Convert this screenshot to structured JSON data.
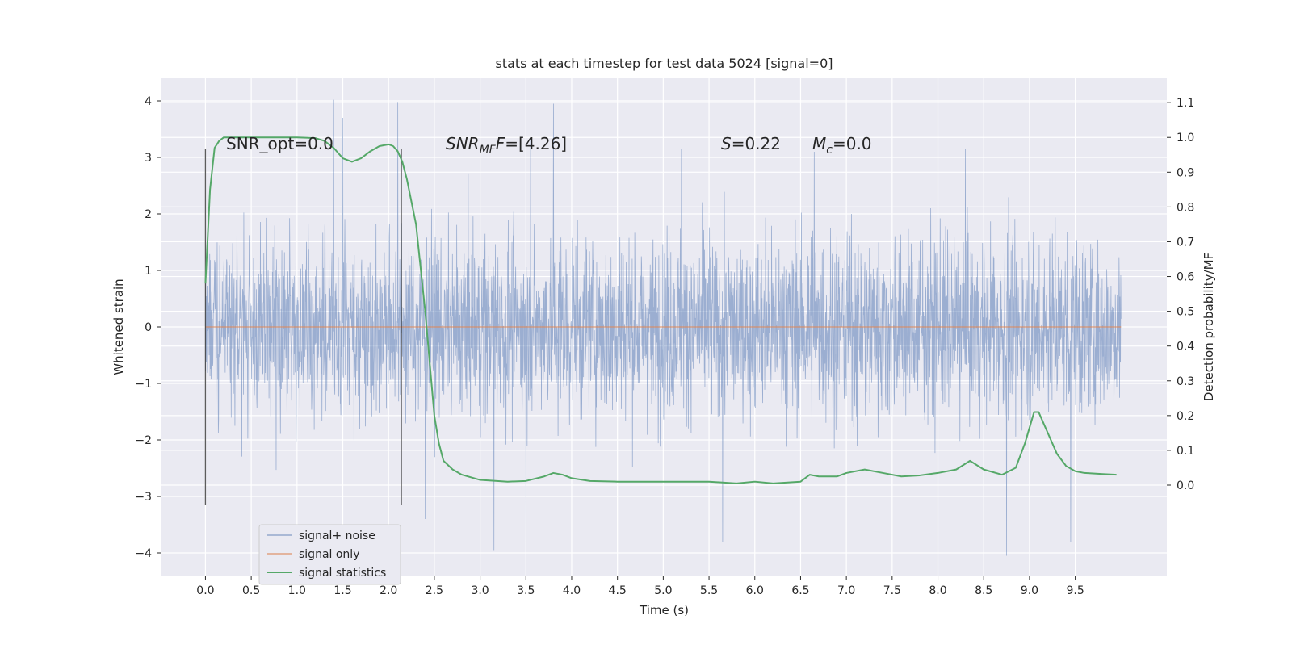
{
  "chart_data": {
    "type": "line",
    "title": "stats at each timestep for test data 5024 [signal=0]",
    "xlabel": "Time (s)",
    "ylabel": "Whitened strain",
    "y2label": "Detection probability/MF",
    "xlim": [
      -0.48,
      10.5
    ],
    "ylim": [
      -4.4,
      4.4
    ],
    "y2lim": [
      -0.26,
      1.17
    ],
    "x_ticks": [
      0.0,
      0.5,
      1.0,
      1.5,
      2.0,
      2.5,
      3.0,
      3.5,
      4.0,
      4.5,
      5.0,
      5.5,
      6.0,
      6.5,
      7.0,
      7.5,
      8.0,
      8.5,
      9.0,
      9.5
    ],
    "x_tick_labels": [
      "0.0",
      "0.5",
      "1.0",
      "1.5",
      "2.0",
      "2.5",
      "3.0",
      "3.5",
      "4.0",
      "4.5",
      "5.0",
      "5.5",
      "6.0",
      "6.5",
      "7.0",
      "7.5",
      "8.0",
      "8.5",
      "9.0",
      "9.5"
    ],
    "y_ticks": [
      4,
      3,
      2,
      1,
      0,
      -1,
      -2,
      -3,
      -4
    ],
    "y_tick_labels": [
      "4",
      "3",
      "2",
      "1",
      "0",
      "−1",
      "−2",
      "−3",
      "−4"
    ],
    "y2_ticks": [
      1.1,
      1.0,
      0.9,
      0.8,
      0.7,
      0.6,
      0.5,
      0.4,
      0.3,
      0.2,
      0.1,
      0.0
    ],
    "y2_tick_labels": [
      "1.1",
      "1.0",
      "0.9",
      "0.8",
      "0.7",
      "0.6",
      "0.5",
      "0.4",
      "0.3",
      "0.2",
      "0.1",
      "0.0"
    ],
    "grid": true,
    "legend_position": "bottom-left",
    "annotations": {
      "snr_opt": "SNR_opt=0.0",
      "snr_mf_main": "SNR",
      "snr_mf_sub": "MF",
      "snr_mf_rest": "=[4.26]",
      "s_main": "S",
      "s_rest": "=0.22",
      "mc_main": "M",
      "mc_sub": "c",
      "mc_rest": "=0.0"
    },
    "vlines": [
      {
        "x": 0.0,
        "y": [
          -3.15,
          3.15
        ]
      },
      {
        "x": 2.14,
        "y": [
          -3.15,
          3.15
        ]
      }
    ],
    "series": [
      {
        "name": "signal+ noise",
        "color": "#4c72b0",
        "axis": "left",
        "time_range": [
          0.0,
          10.0
        ],
        "envelope": {
          "typical_abs": 1.3,
          "max": 4.02,
          "min": -4.05
        },
        "notable_peaks": [
          {
            "x": 1.4,
            "y": 4.02
          },
          {
            "x": 2.1,
            "y": 3.98
          },
          {
            "x": 3.8,
            "y": 3.95
          },
          {
            "x": 1.5,
            "y": 3.7
          },
          {
            "x": 3.5,
            "y": -4.05
          },
          {
            "x": 8.75,
            "y": -4.05
          },
          {
            "x": 3.15,
            "y": -3.95
          },
          {
            "x": 5.65,
            "y": -3.8
          },
          {
            "x": 9.45,
            "y": -3.8
          },
          {
            "x": 2.4,
            "y": -3.4
          },
          {
            "x": 3.55,
            "y": 3.3
          },
          {
            "x": 5.2,
            "y": 3.15
          },
          {
            "x": 6.65,
            "y": 3.1
          },
          {
            "x": 8.3,
            "y": 3.15
          }
        ]
      },
      {
        "name": "signal only",
        "color": "#dd8452",
        "axis": "left",
        "x": [
          0.0,
          10.0
        ],
        "y": [
          0.0,
          0.0
        ]
      },
      {
        "name": "signal statistics",
        "color": "#55a868",
        "axis": "right",
        "x": [
          0.0,
          0.05,
          0.1,
          0.15,
          0.2,
          0.3,
          0.5,
          0.8,
          1.0,
          1.2,
          1.3,
          1.4,
          1.5,
          1.6,
          1.7,
          1.8,
          1.9,
          2.0,
          2.05,
          2.1,
          2.15,
          2.2,
          2.3,
          2.4,
          2.45,
          2.5,
          2.55,
          2.6,
          2.7,
          2.8,
          3.0,
          3.3,
          3.5,
          3.7,
          3.8,
          3.9,
          4.0,
          4.2,
          4.5,
          5.0,
          5.5,
          5.8,
          6.0,
          6.2,
          6.5,
          6.6,
          6.7,
          6.9,
          7.0,
          7.2,
          7.4,
          7.6,
          7.8,
          8.0,
          8.2,
          8.35,
          8.5,
          8.7,
          8.85,
          8.95,
          9.05,
          9.1,
          9.2,
          9.3,
          9.4,
          9.5,
          9.6,
          9.8,
          9.95
        ],
        "y": [
          0.58,
          0.85,
          0.97,
          0.99,
          1.0,
          1.0,
          1.0,
          1.0,
          1.0,
          0.998,
          0.99,
          0.97,
          0.94,
          0.93,
          0.94,
          0.96,
          0.975,
          0.98,
          0.975,
          0.96,
          0.93,
          0.88,
          0.75,
          0.5,
          0.35,
          0.2,
          0.12,
          0.07,
          0.045,
          0.03,
          0.015,
          0.01,
          0.012,
          0.025,
          0.035,
          0.03,
          0.02,
          0.012,
          0.01,
          0.01,
          0.01,
          0.005,
          0.01,
          0.005,
          0.01,
          0.03,
          0.025,
          0.025,
          0.035,
          0.045,
          0.035,
          0.025,
          0.028,
          0.035,
          0.045,
          0.07,
          0.045,
          0.03,
          0.05,
          0.12,
          0.21,
          0.21,
          0.15,
          0.09,
          0.055,
          0.04,
          0.035,
          0.032,
          0.03
        ]
      }
    ]
  }
}
